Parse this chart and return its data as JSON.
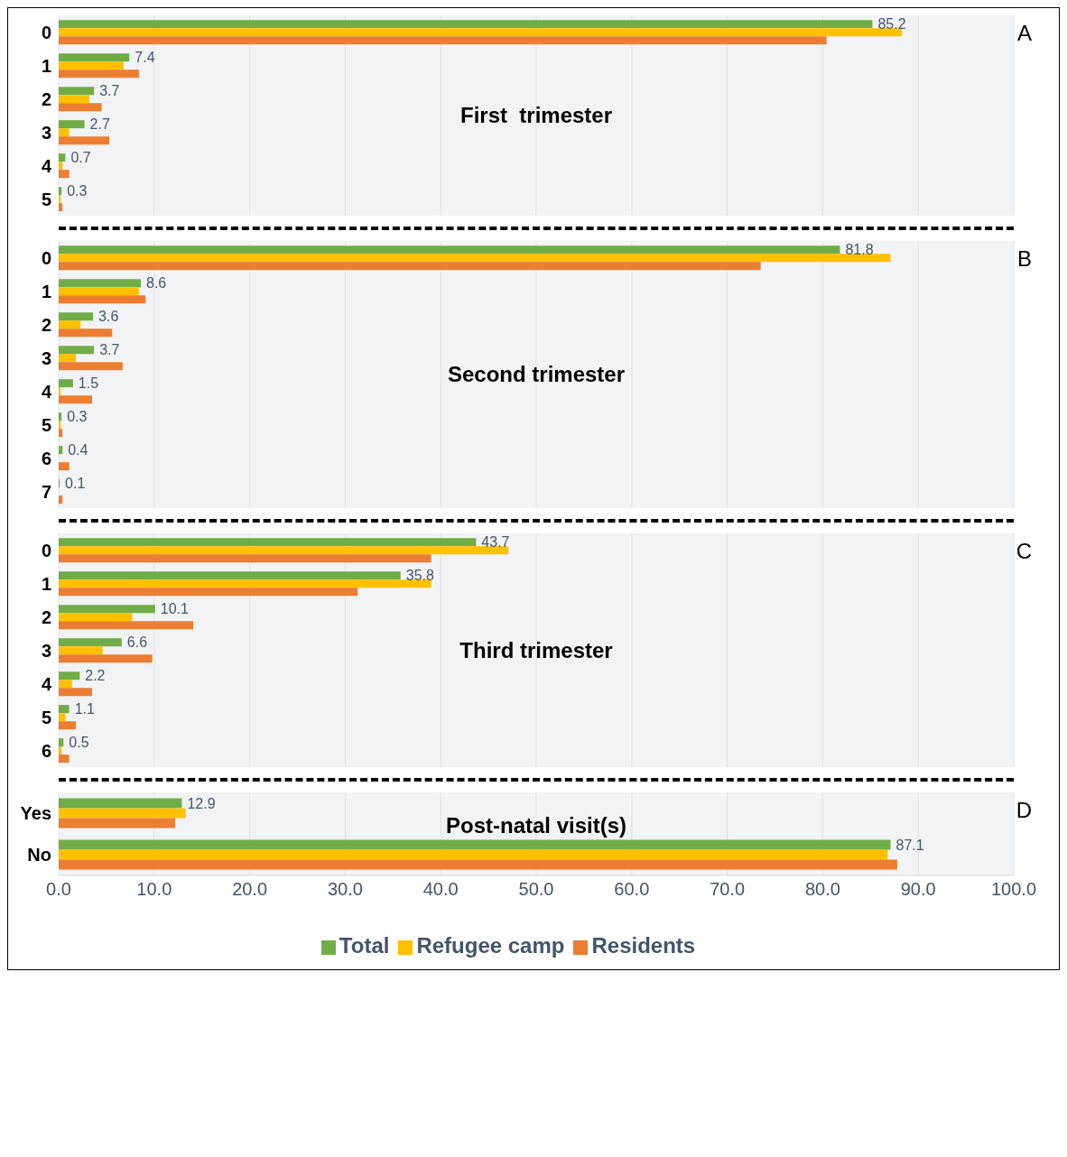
{
  "chart_data": [
    {
      "type": "bar",
      "orientation": "horizontal",
      "title": "First  trimester",
      "annotations": [
        "A"
      ],
      "categories": [
        "0",
        "1",
        "2",
        "3",
        "4",
        "5"
      ],
      "series": [
        {
          "color": "#70ad47",
          "values": [
            85.2,
            7.4,
            3.7,
            2.7,
            0.7,
            0.3
          ],
          "value_labels": [
            "85.2",
            "7.4",
            "3.7",
            "2.7",
            "0.7",
            "0.3"
          ]
        },
        {
          "color": "#ffc000",
          "values": [
            88.3,
            6.8,
            3.2,
            1.1,
            0.4,
            0.2
          ]
        },
        {
          "color": "#ed7d31",
          "values": [
            80.4,
            8.4,
            4.5,
            5.3,
            1.1,
            0.4
          ]
        }
      ],
      "xlim": [
        0,
        100
      ],
      "xticks": [
        0,
        10,
        20,
        30,
        40,
        50,
        60,
        70,
        80,
        90,
        100
      ],
      "grid": "x",
      "tick_labels": "y"
    },
    {
      "type": "bar",
      "orientation": "horizontal",
      "title": "Second trimester",
      "annotations": [
        "B"
      ],
      "categories": [
        "0",
        "1",
        "2",
        "3",
        "4",
        "5",
        "6",
        "7"
      ],
      "series": [
        {
          "color": "#70ad47",
          "values": [
            81.8,
            8.6,
            3.6,
            3.7,
            1.5,
            0.3,
            0.4,
            0.1
          ],
          "value_labels": [
            "81.8",
            "8.6",
            "3.6",
            "3.7",
            "1.5",
            "0.3",
            "0.4",
            "0.1"
          ]
        },
        {
          "color": "#ffc000",
          "values": [
            87.1,
            8.4,
            2.3,
            1.8,
            0.2,
            0.2,
            0,
            0
          ]
        },
        {
          "color": "#ed7d31",
          "values": [
            73.5,
            9.1,
            5.6,
            6.7,
            3.5,
            0.4,
            1.1,
            0.4
          ]
        }
      ],
      "xlim": [
        0,
        100
      ],
      "xticks": [
        0,
        10,
        20,
        30,
        40,
        50,
        60,
        70,
        80,
        90,
        100
      ],
      "grid": "x",
      "tick_labels": "y"
    },
    {
      "type": "bar",
      "orientation": "horizontal",
      "title": "Third trimester",
      "annotations": [
        "C"
      ],
      "categories": [
        "0",
        "1",
        "2",
        "3",
        "4",
        "5",
        "6"
      ],
      "series": [
        {
          "color": "#70ad47",
          "values": [
            43.7,
            35.8,
            10.1,
            6.6,
            2.2,
            1.1,
            0.5
          ],
          "value_labels": [
            "43.7",
            "35.8",
            "10.1",
            "6.6",
            "2.2",
            "1.1",
            "0.5"
          ]
        },
        {
          "color": "#ffc000",
          "values": [
            47.1,
            39.0,
            7.7,
            4.6,
            1.4,
            0.7,
            0.3
          ]
        },
        {
          "color": "#ed7d31",
          "values": [
            39.0,
            31.3,
            14.1,
            9.8,
            3.5,
            1.8,
            1.1
          ]
        }
      ],
      "xlim": [
        0,
        100
      ],
      "xticks": [
        0,
        10,
        20,
        30,
        40,
        50,
        60,
        70,
        80,
        90,
        100
      ],
      "grid": "x",
      "tick_labels": "y"
    },
    {
      "type": "bar",
      "orientation": "horizontal",
      "title": "Post-natal visit(s)",
      "annotations": [
        "D"
      ],
      "categories": [
        "Yes",
        "No"
      ],
      "series": [
        {
          "name": "Total",
          "color": "#70ad47",
          "values": [
            12.9,
            87.1
          ],
          "value_labels": [
            "12.9",
            "87.1"
          ]
        },
        {
          "name": "Refugee camp",
          "color": "#ffc000",
          "values": [
            13.3,
            86.8
          ]
        },
        {
          "name": "Residents",
          "color": "#ed7d31",
          "values": [
            12.2,
            87.8
          ]
        }
      ],
      "xlim": [
        0,
        100
      ],
      "xticks": [
        {
          "value": 0,
          "label": "0.0"
        },
        {
          "value": 10,
          "label": "10.0"
        },
        {
          "value": 20,
          "label": "20.0"
        },
        {
          "value": 30,
          "label": "30.0"
        },
        {
          "value": 40,
          "label": "40.0"
        },
        {
          "value": 50,
          "label": "50.0"
        },
        {
          "value": 60,
          "label": "60.0"
        },
        {
          "value": 70,
          "label": "70.0"
        },
        {
          "value": 80,
          "label": "80.0"
        },
        {
          "value": 90,
          "label": "90.0"
        },
        {
          "value": 100,
          "label": "100.0"
        }
      ],
      "grid": "x",
      "legend": "bottom"
    }
  ]
}
